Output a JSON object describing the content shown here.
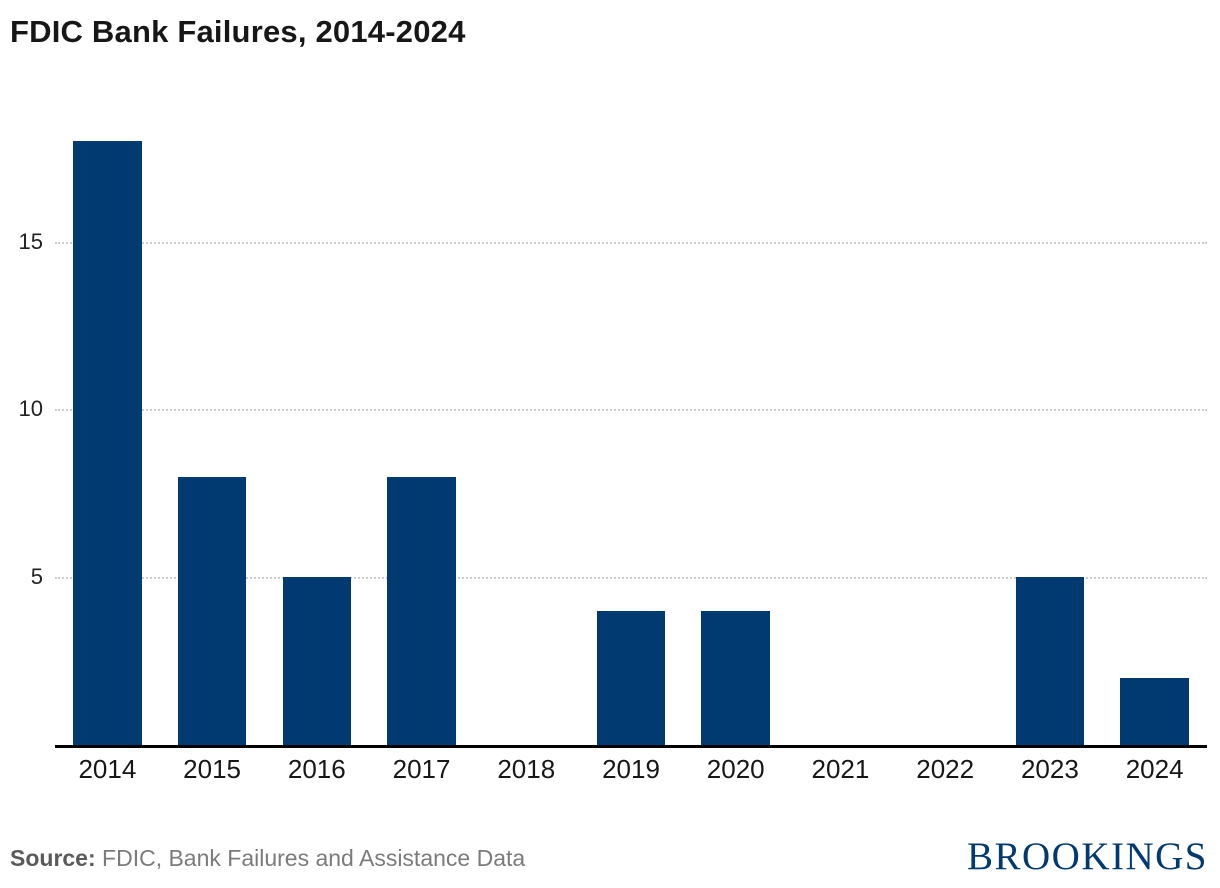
{
  "chart_data": {
    "type": "bar",
    "title": "FDIC Bank Failures, 2014-2024",
    "categories": [
      "2014",
      "2015",
      "2016",
      "2017",
      "2018",
      "2019",
      "2020",
      "2021",
      "2022",
      "2023",
      "2024"
    ],
    "values": [
      18,
      8,
      5,
      8,
      0,
      4,
      4,
      0,
      0,
      5,
      2
    ],
    "xlabel": "",
    "ylabel": "",
    "ylim": [
      0,
      18
    ],
    "yticks": [
      5,
      10,
      15
    ],
    "grid": "horizontal-dotted",
    "legend": "none",
    "bar_color": "#003A70"
  },
  "footer": {
    "source_label": "Source:",
    "source_text": " FDIC, Bank Failures and Assistance Data",
    "logo_text": "BROOKINGS"
  },
  "colors": {
    "bar": "#003A70",
    "logo": "#003A70",
    "title": "#171717",
    "gridline": "#cccccc",
    "axis": "#000000",
    "source_text": "#7b7b7b"
  }
}
